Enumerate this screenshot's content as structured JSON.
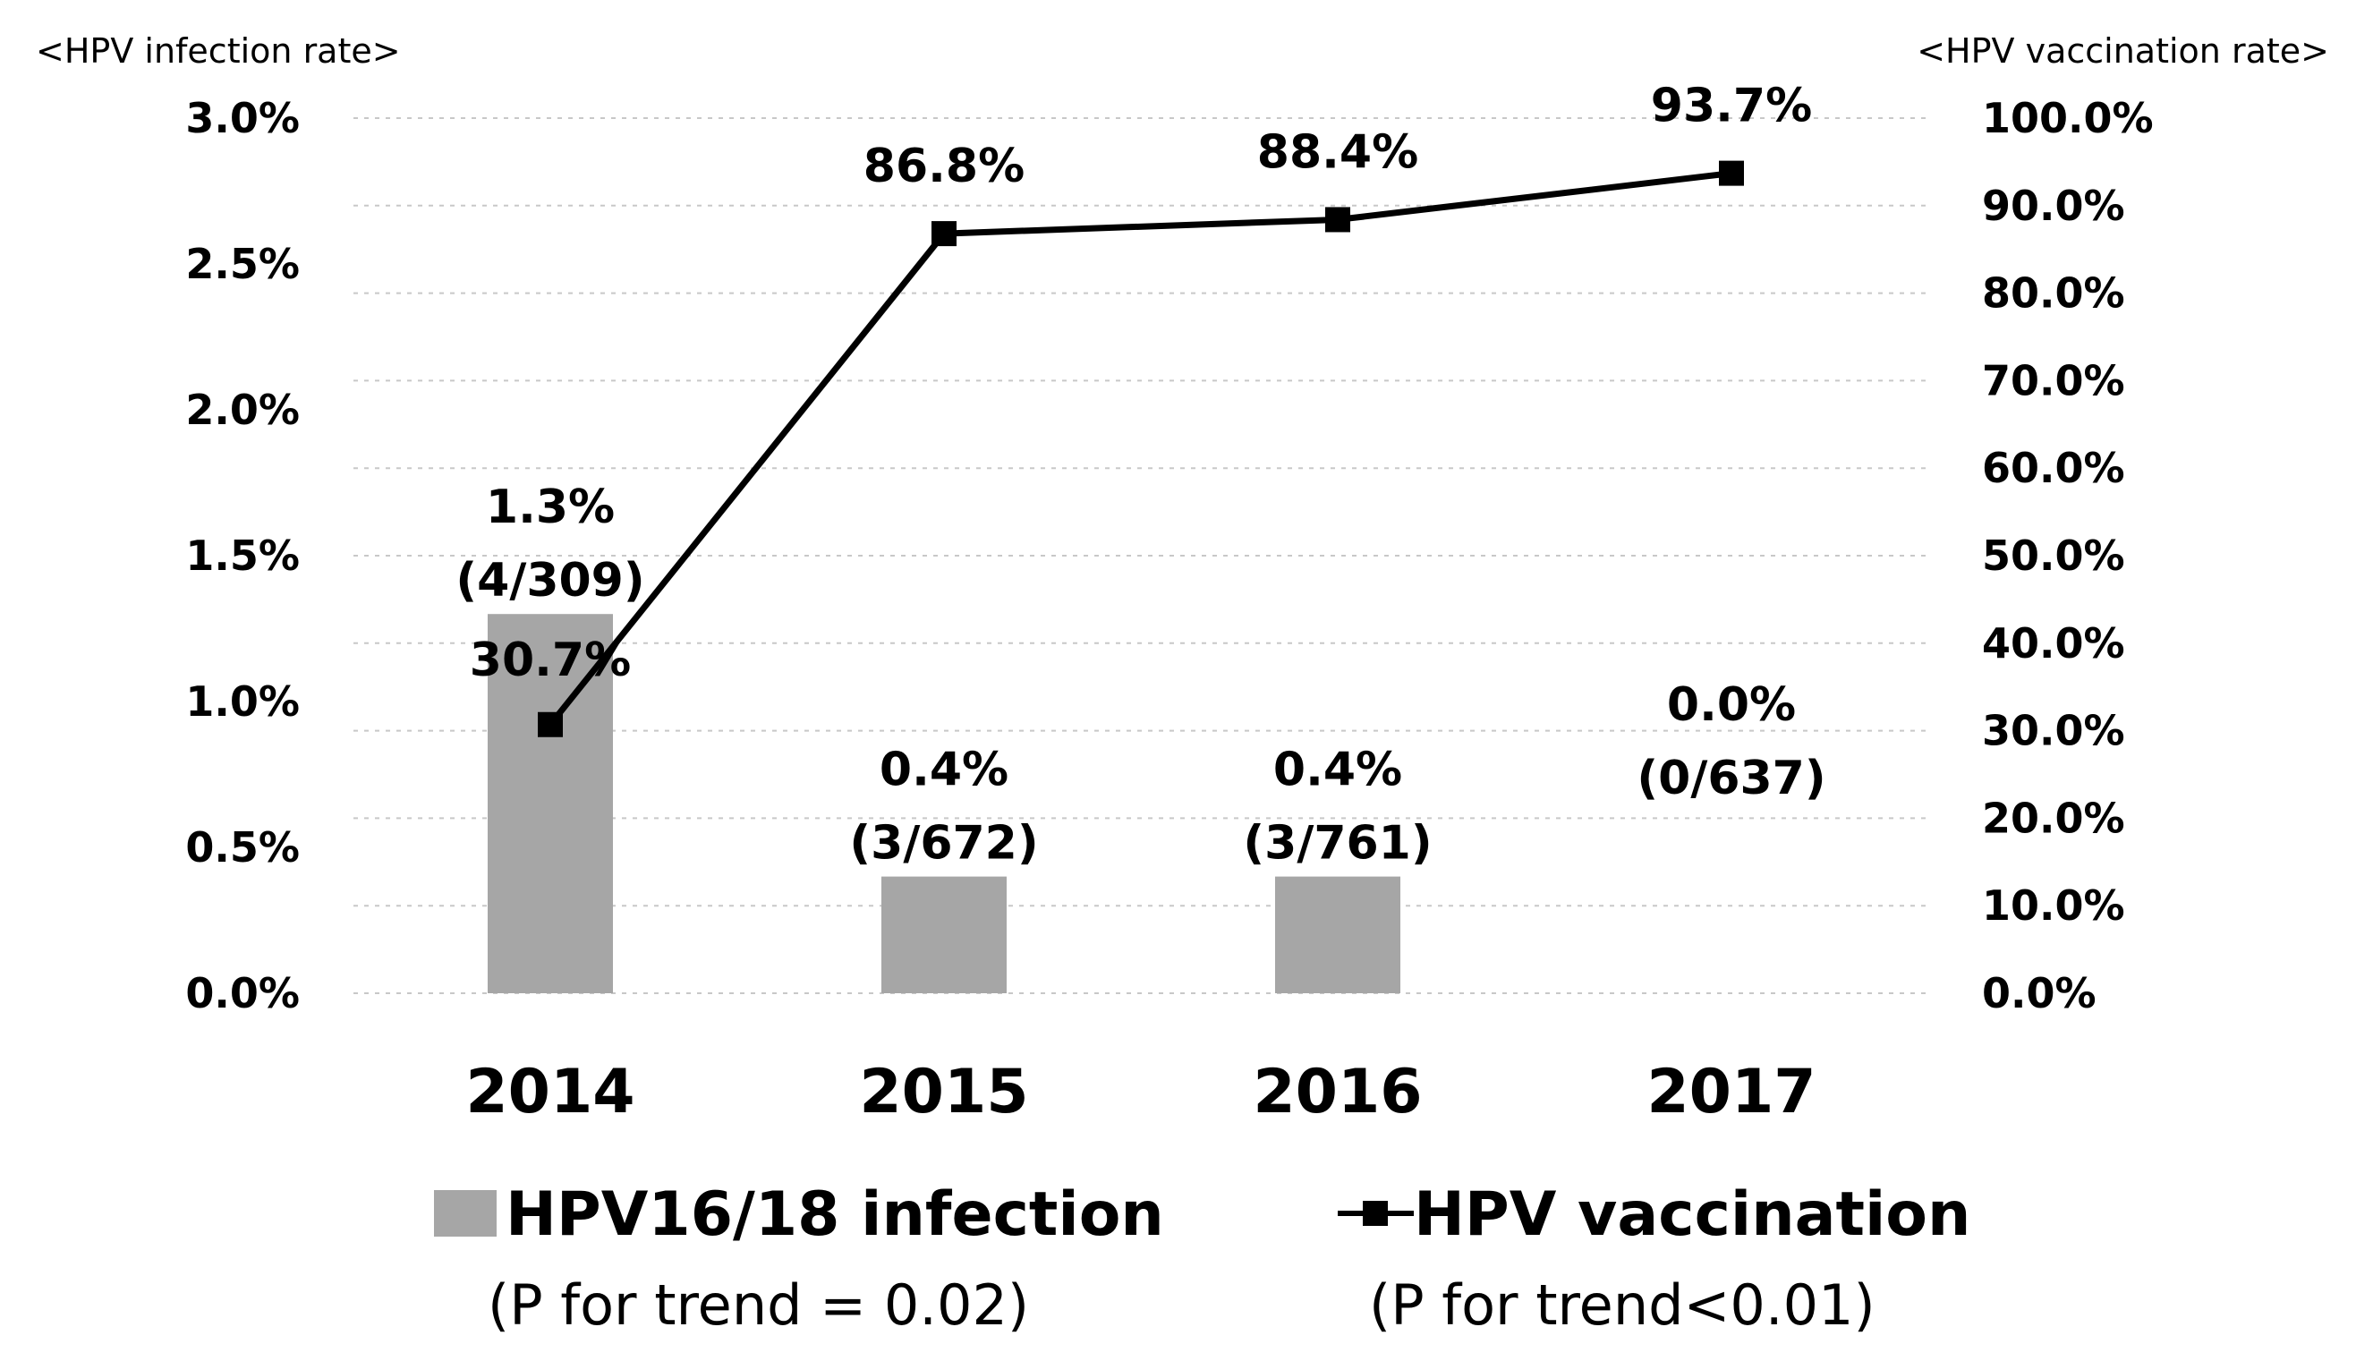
{
  "chart_data": {
    "type": "bar+line",
    "categories": [
      "2014",
      "2015",
      "2016",
      "2017"
    ],
    "left_axis": {
      "title": "<HPV infection rate>",
      "ylim": [
        0,
        3.0
      ],
      "ticks": [
        0.0,
        0.5,
        1.0,
        1.5,
        2.0,
        2.5,
        3.0
      ],
      "tick_labels": [
        "0.0%",
        "0.5%",
        "1.0%",
        "1.5%",
        "2.0%",
        "2.5%",
        "3.0%"
      ]
    },
    "right_axis": {
      "title": "<HPV vaccination rate>",
      "ylim": [
        0,
        100
      ],
      "ticks": [
        0,
        10,
        20,
        30,
        40,
        50,
        60,
        70,
        80,
        90,
        100
      ],
      "tick_labels": [
        "0.0%",
        "10.0%",
        "20.0%",
        "30.0%",
        "40.0%",
        "50.0%",
        "60.0%",
        "70.0%",
        "80.0%",
        "90.0%",
        "100.0%"
      ]
    },
    "series": [
      {
        "name": "HPV16/18 infection",
        "type": "bar",
        "axis": "left",
        "values": [
          1.3,
          0.4,
          0.4,
          0.0
        ],
        "labels": [
          "1.3%",
          "0.4%",
          "0.4%",
          "0.0%"
        ],
        "counts": [
          "(4/309)",
          "(3/672)",
          "(3/761)",
          "(0/637)"
        ],
        "color": "#a6a6a6",
        "note": "(P for trend = 0.02)"
      },
      {
        "name": "HPV vaccination",
        "type": "line",
        "axis": "right",
        "values": [
          30.7,
          86.8,
          88.4,
          93.7
        ],
        "labels": [
          "30.7%",
          "86.8%",
          "88.4%",
          "93.7%"
        ],
        "color": "#000000",
        "note": "(P for trend<0.01)"
      }
    ],
    "grid": true,
    "legend_position": "bottom"
  }
}
